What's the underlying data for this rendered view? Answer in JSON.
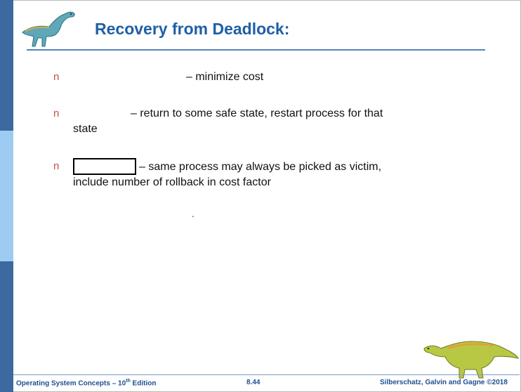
{
  "slide": {
    "title": "Recovery from Deadlock:",
    "bullets": [
      {
        "marker": "n",
        "text": "– minimize cost"
      },
      {
        "marker": "n",
        "text_line1": "– return to some safe state, restart process for that",
        "text_line2": "state"
      },
      {
        "marker": "n",
        "text_line1": "–  same process may always be picked as victim,",
        "text_line2": "include number of rollback in cost factor"
      }
    ],
    "stray_mark": "."
  },
  "footer": {
    "book_prefix": "Operating System Concepts – 10",
    "book_sup": "th",
    "book_suffix": " Edition",
    "page": "8.44",
    "authors": "Silberschatz, Galvin and Gagne ©2018"
  },
  "colors": {
    "title": "#1f5fa6",
    "strip_dark": "#3b69a0",
    "strip_light": "#9ecbf2",
    "bullet": "#c0504d"
  },
  "icons": {
    "title_dinosaur": "dinosaur-icon",
    "footer_dinosaur": "dinosaur-icon"
  }
}
